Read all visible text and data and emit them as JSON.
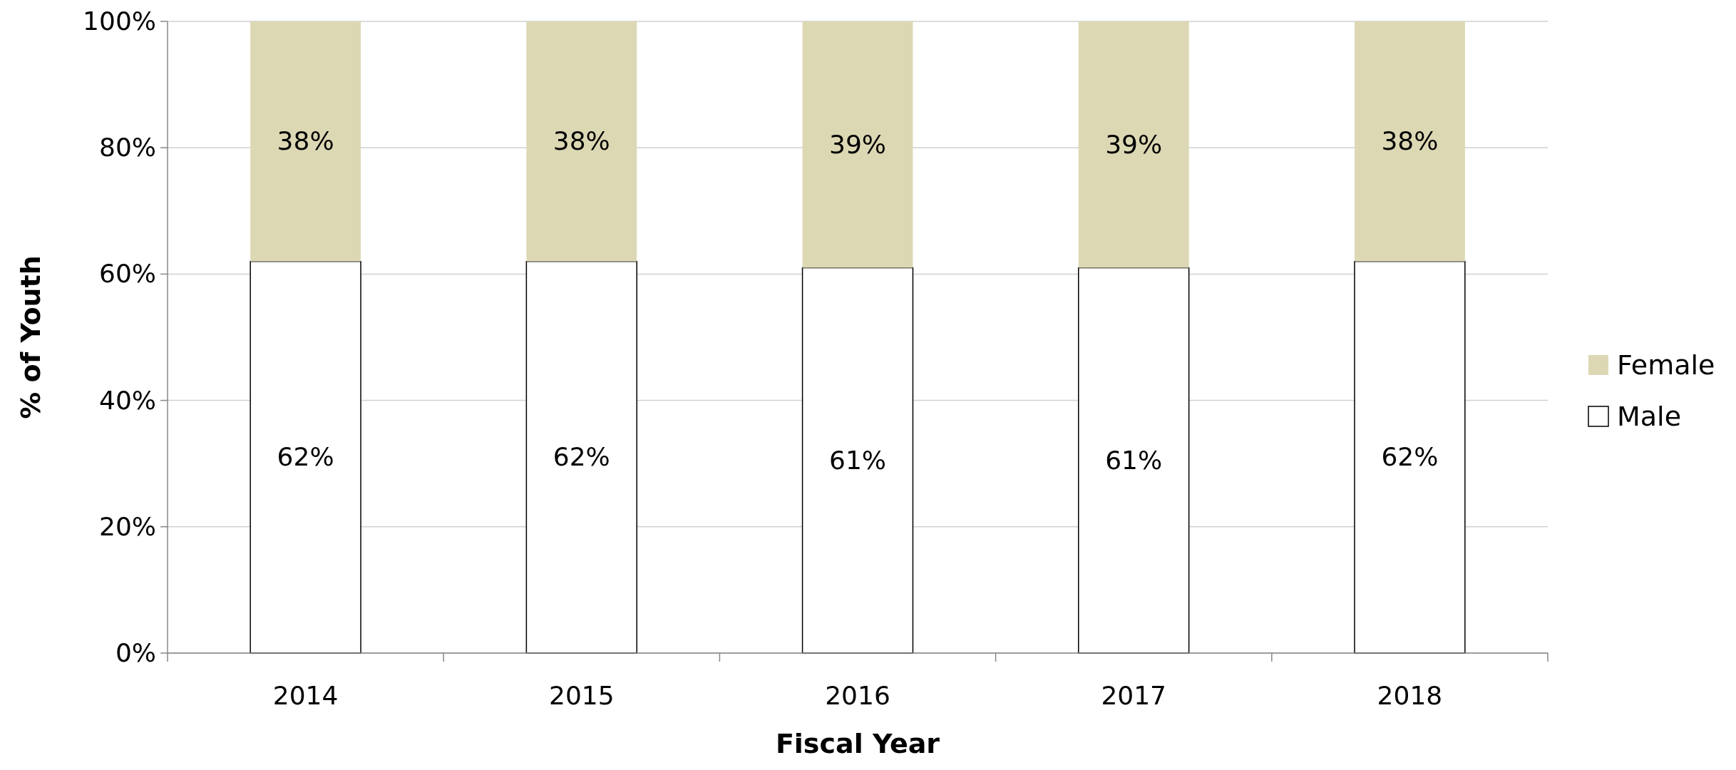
{
  "chart_data": {
    "type": "bar",
    "stacked": true,
    "xlabel": "Fiscal Year",
    "ylabel": "% of Youth",
    "categories": [
      "2014",
      "2015",
      "2016",
      "2017",
      "2018"
    ],
    "series": [
      {
        "name": "Male",
        "color": "#ffffff",
        "values": [
          62,
          62,
          61,
          61,
          62
        ],
        "value_labels": [
          "62%",
          "62%",
          "61%",
          "61%",
          "62%"
        ]
      },
      {
        "name": "Female",
        "color": "#dcd8b4",
        "values": [
          38,
          38,
          39,
          39,
          38
        ],
        "value_labels": [
          "38%",
          "38%",
          "39%",
          "39%",
          "38%"
        ]
      }
    ],
    "ylim": [
      0,
      100
    ],
    "yticks": [
      {
        "value": 0,
        "label": "0%"
      },
      {
        "value": 20,
        "label": "20%"
      },
      {
        "value": 40,
        "label": "40%"
      },
      {
        "value": 60,
        "label": "60%"
      },
      {
        "value": 80,
        "label": "80%"
      },
      {
        "value": 100,
        "label": "100%"
      }
    ],
    "grid": "y",
    "legend": "right"
  }
}
